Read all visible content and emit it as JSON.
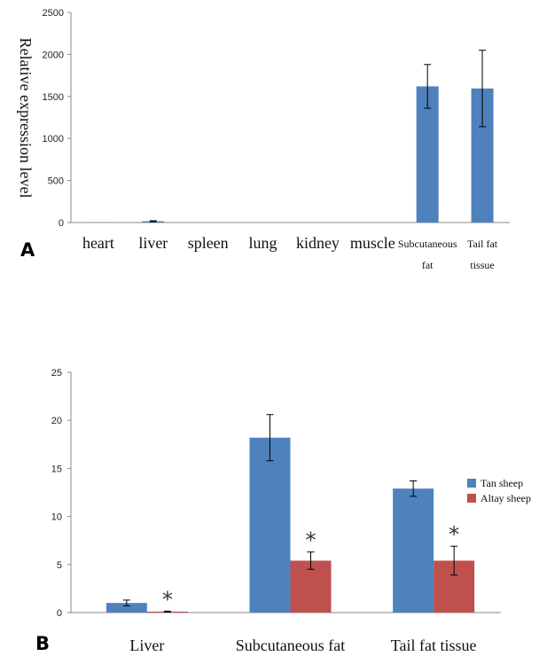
{
  "chart_data": [
    {
      "panel_label": "A",
      "type": "bar",
      "ylabel": "Relative expression level",
      "ylim": [
        0,
        2500
      ],
      "yticks": [
        0,
        500,
        1000,
        1500,
        2000,
        2500
      ],
      "categories": [
        [
          "heart"
        ],
        [
          "liver"
        ],
        [
          "spleen"
        ],
        [
          "lung"
        ],
        [
          "kidney"
        ],
        [
          "muscle"
        ],
        [
          "Subcutaneous",
          "fat"
        ],
        [
          "Tail fat",
          "tissue"
        ]
      ],
      "values": [
        1,
        15,
        0,
        0,
        0,
        0,
        1620,
        1595
      ],
      "errors": [
        0,
        6,
        0,
        0,
        0,
        0,
        260,
        455
      ],
      "color": "#4f81bd"
    },
    {
      "panel_label": "B",
      "type": "bar",
      "ylim": [
        0,
        25
      ],
      "yticks": [
        0,
        5,
        10,
        15,
        20,
        25
      ],
      "categories": [
        "Liver",
        "Subcutaneous fat",
        "Tail fat tissue"
      ],
      "series": [
        {
          "name": "Tan sheep",
          "color": "#4f81bd",
          "values": [
            1.0,
            18.2,
            12.9
          ],
          "errors": [
            0.3,
            2.4,
            0.8
          ]
        },
        {
          "name": "Altay sheep",
          "color": "#c0504d",
          "values": [
            0.1,
            5.4,
            5.4
          ],
          "errors": [
            0.05,
            0.9,
            1.5
          ]
        }
      ],
      "significance_marker": "*",
      "significance": [
        true,
        true,
        true
      ],
      "legend_position": "right"
    }
  ]
}
